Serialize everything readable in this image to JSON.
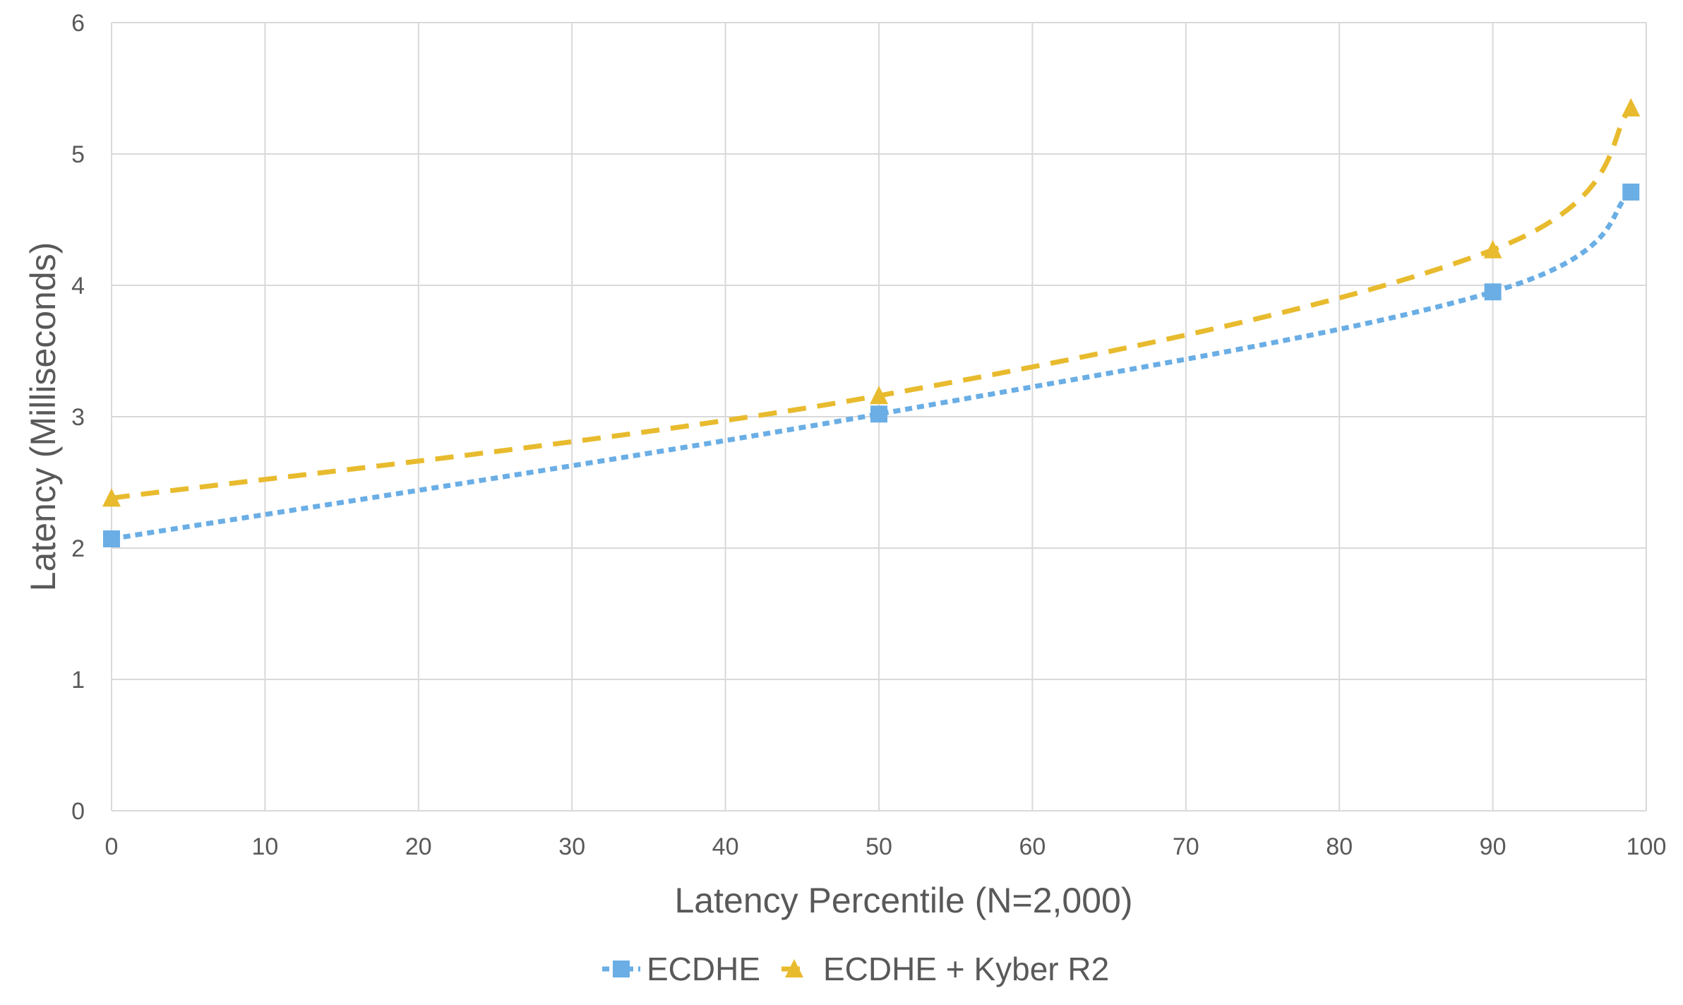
{
  "chart_data": {
    "type": "line",
    "title": "",
    "xlabel": "Latency Percentile (N=2,000)",
    "ylabel": "Latency (Milliseconds)",
    "xlim": [
      0,
      100
    ],
    "ylim": [
      0,
      6
    ],
    "x_ticks": [
      "0",
      "10",
      "20",
      "30",
      "40",
      "50",
      "60",
      "70",
      "80",
      "90",
      "100"
    ],
    "y_ticks": [
      "0",
      "1",
      "2",
      "3",
      "4",
      "5",
      "6"
    ],
    "grid": true,
    "legend_position": "bottom",
    "series": [
      {
        "name": "ECDHE",
        "color": "#6AAEE5",
        "marker": "square",
        "line_style": "dotted",
        "x": [
          0,
          50,
          90,
          99
        ],
        "values": [
          2.07,
          3.02,
          3.95,
          4.71
        ]
      },
      {
        "name": "ECDHE + Kyber R2",
        "color": "#E8BB2E",
        "marker": "triangle",
        "line_style": "dashed",
        "x": [
          0,
          50,
          90,
          99
        ],
        "values": [
          2.38,
          3.16,
          4.27,
          5.35
        ]
      }
    ]
  },
  "colors": {
    "grid": "#D9D9D9",
    "text": "#595959",
    "background": "#FFFFFF"
  }
}
